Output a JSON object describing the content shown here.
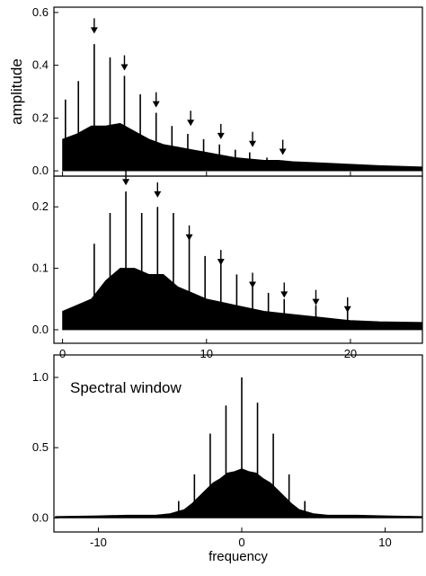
{
  "chart_data": [
    {
      "type": "spectrum",
      "y_label": "amplitude",
      "color": "#000000",
      "xlim": [
        -0.6,
        25
      ],
      "ylim": [
        -0.02,
        0.62
      ],
      "xticks": [
        0,
        10,
        20
      ],
      "xtick_labels": false,
      "yticks": [
        0.0,
        0.2,
        0.4,
        0.6
      ],
      "envelope": {
        "x": [
          0,
          1,
          2,
          3,
          4,
          5,
          6,
          7,
          8,
          9,
          10,
          11,
          12,
          13,
          14,
          15,
          16,
          18,
          20,
          22,
          25
        ],
        "values": [
          0.12,
          0.14,
          0.17,
          0.17,
          0.18,
          0.15,
          0.12,
          0.1,
          0.09,
          0.08,
          0.07,
          0.06,
          0.05,
          0.045,
          0.04,
          0.04,
          0.035,
          0.03,
          0.025,
          0.02,
          0.015
        ]
      },
      "peaks": {
        "x": [
          0.2,
          1.1,
          2.2,
          3.3,
          4.3,
          5.4,
          6.5,
          7.6,
          8.7,
          9.8,
          10.9,
          12.0,
          13.0,
          14.2,
          15.3
        ],
        "values": [
          0.27,
          0.34,
          0.48,
          0.43,
          0.36,
          0.29,
          0.22,
          0.17,
          0.14,
          0.12,
          0.1,
          0.08,
          0.07,
          0.05,
          0.04
        ]
      },
      "arrows": {
        "x": [
          2.2,
          4.3,
          6.5,
          8.9,
          11.0,
          13.2,
          15.3
        ],
        "y": [
          0.52,
          0.38,
          0.24,
          0.17,
          0.12,
          0.09,
          0.06
        ]
      }
    },
    {
      "type": "spectrum",
      "color": "#000000",
      "xlim": [
        -0.6,
        25
      ],
      "ylim": [
        -0.022,
        0.25
      ],
      "xticks": [
        0,
        10,
        20
      ],
      "yticks": [
        0.0,
        0.1,
        0.2
      ],
      "envelope": {
        "x": [
          0,
          1,
          2,
          3,
          4,
          5,
          6,
          7,
          8,
          9,
          10,
          11,
          12,
          13,
          14,
          16,
          18,
          20,
          22,
          25
        ],
        "values": [
          0.03,
          0.04,
          0.05,
          0.08,
          0.1,
          0.1,
          0.09,
          0.09,
          0.07,
          0.06,
          0.05,
          0.045,
          0.04,
          0.035,
          0.03,
          0.025,
          0.02,
          0.015,
          0.013,
          0.012
        ]
      },
      "peaks": {
        "x": [
          2.2,
          3.3,
          4.4,
          5.5,
          6.6,
          7.7,
          8.8,
          9.9,
          11.0,
          12.1,
          13.2,
          14.3,
          15.4,
          17.6,
          19.8
        ],
        "values": [
          0.14,
          0.19,
          0.225,
          0.19,
          0.2,
          0.19,
          0.15,
          0.12,
          0.11,
          0.09,
          0.07,
          0.06,
          0.05,
          0.04,
          0.03
        ]
      },
      "arrows": {
        "x": [
          4.4,
          6.6,
          8.8,
          11.0,
          13.2,
          15.4,
          17.6,
          19.8
        ],
        "y": [
          0.235,
          0.215,
          0.145,
          0.105,
          0.068,
          0.052,
          0.04,
          0.028
        ]
      }
    },
    {
      "type": "spectrum",
      "x_label": "frequency",
      "annotation": "Spectral window",
      "color": "#000000",
      "xlim": [
        -13.1,
        12.6
      ],
      "ylim": [
        -0.1,
        1.16
      ],
      "xticks": [
        -10,
        0,
        10
      ],
      "yticks": [
        0.0,
        0.5,
        1.0
      ],
      "envelope": {
        "x": [
          -13,
          -10,
          -8,
          -6,
          -5,
          -4,
          -3.5,
          -3,
          -2.5,
          -2,
          -1.5,
          -1,
          -0.5,
          0,
          0.5,
          1,
          1.5,
          2,
          2.5,
          3,
          3.5,
          4,
          5,
          6,
          8,
          10,
          12.6
        ],
        "values": [
          0.01,
          0.015,
          0.02,
          0.02,
          0.03,
          0.06,
          0.1,
          0.15,
          0.2,
          0.25,
          0.28,
          0.32,
          0.33,
          0.35,
          0.33,
          0.32,
          0.28,
          0.25,
          0.2,
          0.15,
          0.1,
          0.06,
          0.03,
          0.02,
          0.02,
          0.015,
          0.01
        ]
      },
      "peaks": {
        "x": [
          -4.4,
          -3.3,
          -2.2,
          -1.1,
          0,
          1.1,
          2.2,
          3.3,
          4.4
        ],
        "values": [
          0.12,
          0.31,
          0.6,
          0.8,
          1.0,
          0.82,
          0.6,
          0.31,
          0.12
        ]
      }
    }
  ]
}
